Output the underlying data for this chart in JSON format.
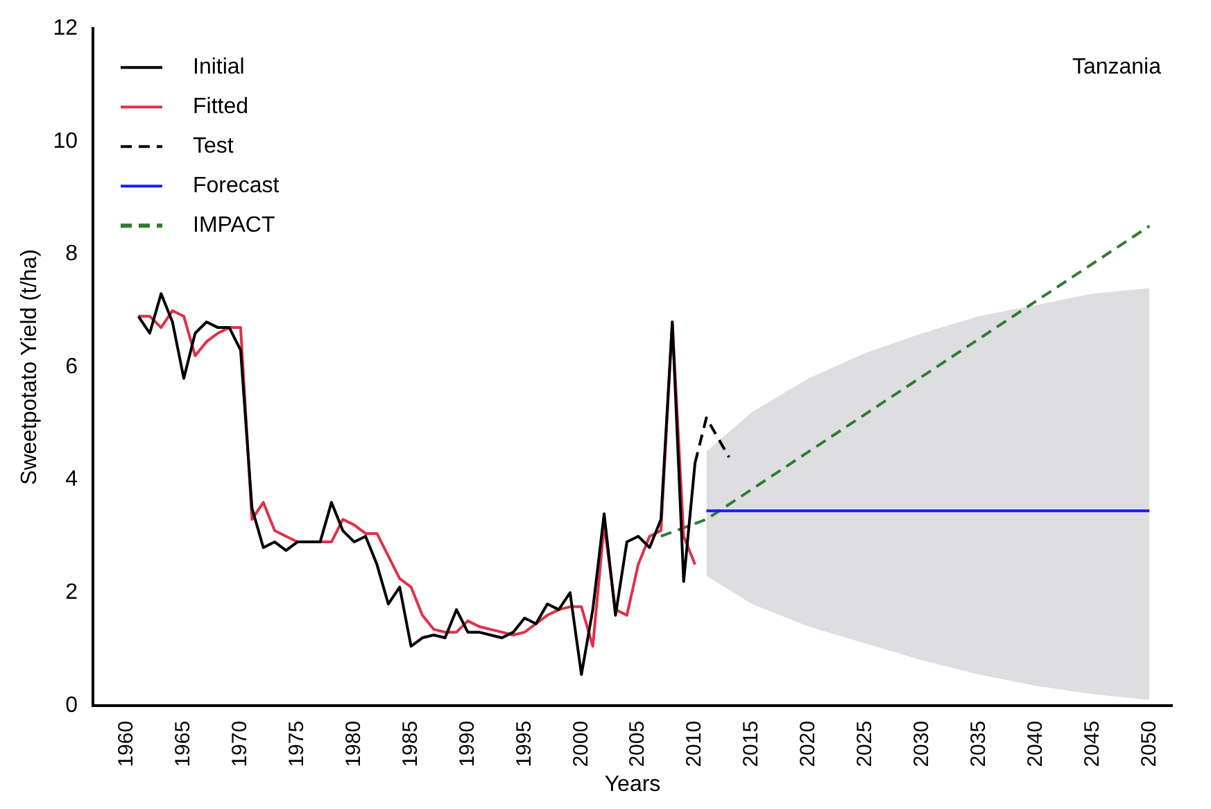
{
  "chart_data": {
    "type": "line",
    "xlabel": "Years",
    "ylabel": "Sweetpotato Yield (t/ha)",
    "annotations": [
      "Tanzania"
    ],
    "xlim": [
      1957,
      2052
    ],
    "xticks": [
      1960,
      1965,
      1970,
      1975,
      1980,
      1985,
      1990,
      1995,
      2000,
      2005,
      2010,
      2015,
      2020,
      2025,
      2030,
      2035,
      2040,
      2045,
      2050
    ],
    "ylim": [
      0,
      12
    ],
    "yticks": [
      0,
      2,
      4,
      6,
      8,
      10,
      12
    ],
    "grid": false,
    "legend": "top left",
    "marker": "none",
    "series": [
      {
        "name": "Initial",
        "color": "#000000",
        "line_style": "solid",
        "x": [
          1961,
          1962,
          1963,
          1964,
          1965,
          1966,
          1967,
          1968,
          1969,
          1970,
          1971,
          1972,
          1973,
          1974,
          1975,
          1976,
          1977,
          1978,
          1979,
          1980,
          1981,
          1982,
          1983,
          1984,
          1985,
          1986,
          1987,
          1988,
          1989,
          1990,
          1991,
          1992,
          1993,
          1994,
          1995,
          1996,
          1997,
          1998,
          1999,
          2000,
          2001,
          2002,
          2003,
          2004,
          2005,
          2006,
          2007,
          2008,
          2009,
          2010
        ],
        "values": [
          6.9,
          6.6,
          7.3,
          6.8,
          5.8,
          6.6,
          6.8,
          6.7,
          6.7,
          6.3,
          3.5,
          2.8,
          2.9,
          2.75,
          2.9,
          2.9,
          2.9,
          3.6,
          3.1,
          2.9,
          3.0,
          2.5,
          1.8,
          2.1,
          1.05,
          1.2,
          1.25,
          1.2,
          1.7,
          1.3,
          1.3,
          1.25,
          1.2,
          1.3,
          1.55,
          1.45,
          1.8,
          1.7,
          2.0,
          0.55,
          1.7,
          3.4,
          1.6,
          2.9,
          3.0,
          2.8,
          3.3,
          6.8,
          2.2,
          4.3
        ]
      },
      {
        "name": "Fitted",
        "color": "#e0304a",
        "line_style": "solid",
        "x": [
          1961,
          1962,
          1963,
          1964,
          1965,
          1966,
          1967,
          1968,
          1969,
          1970,
          1971,
          1972,
          1973,
          1974,
          1975,
          1976,
          1977,
          1978,
          1979,
          1980,
          1981,
          1982,
          1983,
          1984,
          1985,
          1986,
          1987,
          1988,
          1989,
          1990,
          1991,
          1992,
          1993,
          1994,
          1995,
          1996,
          1997,
          1998,
          1999,
          2000,
          2001,
          2002,
          2003,
          2004,
          2005,
          2006,
          2007,
          2008,
          2009,
          2010
        ],
        "values": [
          6.9,
          6.9,
          6.7,
          7.0,
          6.9,
          6.2,
          6.45,
          6.6,
          6.7,
          6.7,
          3.3,
          3.6,
          3.1,
          3.0,
          2.9,
          2.9,
          2.9,
          2.9,
          3.3,
          3.2,
          3.05,
          3.05,
          2.65,
          2.25,
          2.1,
          1.6,
          1.35,
          1.3,
          1.3,
          1.5,
          1.4,
          1.35,
          1.3,
          1.25,
          1.3,
          1.45,
          1.6,
          1.7,
          1.75,
          1.75,
          1.05,
          3.2,
          1.7,
          1.6,
          2.5,
          3.0,
          3.1,
          6.8,
          3.0,
          2.5
        ]
      },
      {
        "name": "Test",
        "color": "#000000",
        "line_style": "dashed",
        "x": [
          2010,
          2011,
          2013
        ],
        "values": [
          4.3,
          5.1,
          4.4
        ]
      },
      {
        "name": "Forecast",
        "color": "#1a1aff",
        "line_style": "solid",
        "x": [
          2011,
          2015,
          2020,
          2025,
          2030,
          2035,
          2040,
          2045,
          2050
        ],
        "values": [
          3.45,
          3.45,
          3.45,
          3.45,
          3.45,
          3.45,
          3.45,
          3.45,
          3.45
        ],
        "lower": [
          2.3,
          1.8,
          1.4,
          1.1,
          0.8,
          0.55,
          0.35,
          0.2,
          0.1
        ],
        "upper": [
          4.5,
          5.2,
          5.8,
          6.25,
          6.6,
          6.9,
          7.1,
          7.3,
          7.4
        ]
      },
      {
        "name": "IMPACT",
        "color": "#2e7d32",
        "line_style": "dashed",
        "x": [
          2007,
          2011,
          2050
        ],
        "values": [
          3.0,
          3.3,
          8.5
        ]
      }
    ]
  }
}
